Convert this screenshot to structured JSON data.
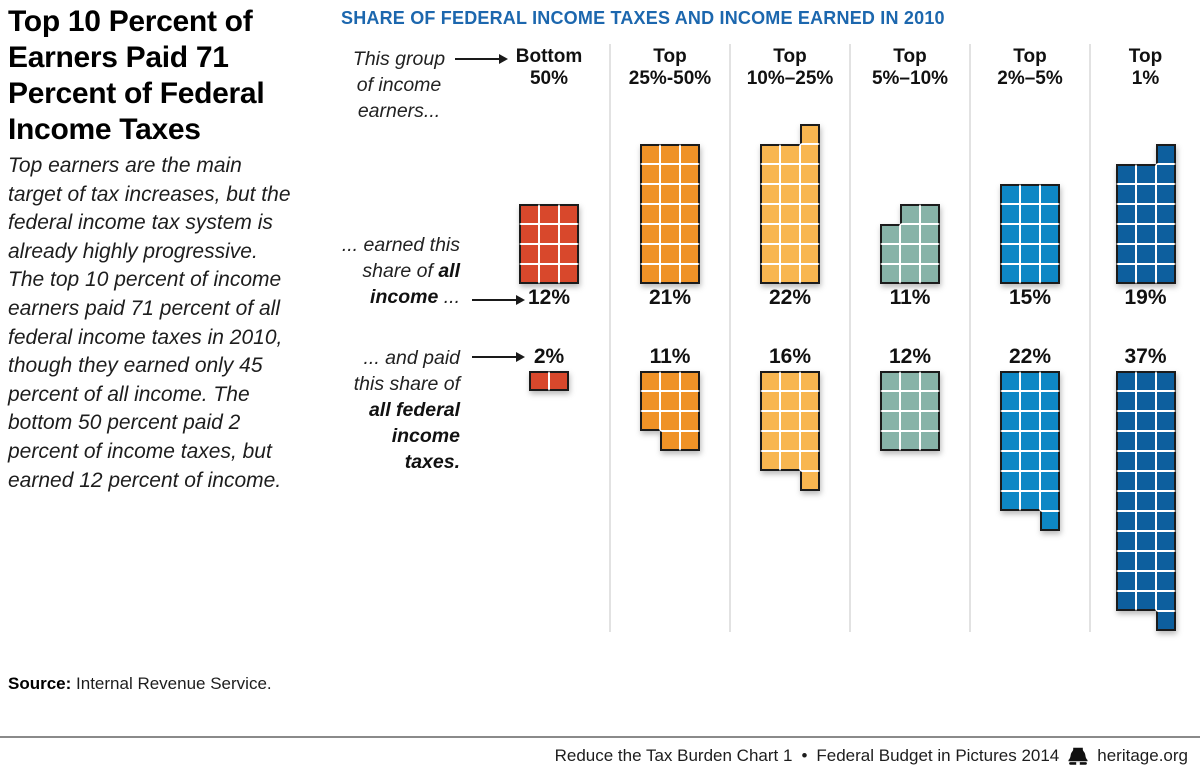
{
  "left_panel": {
    "title_lines": [
      "Top 10 Percent of",
      "Earners Paid 71",
      "Percent of Federal",
      "Income Taxes"
    ],
    "description_lines": [
      "Top earners are the main",
      "target of tax increases, but the",
      "federal income tax system is",
      "already highly progressive.",
      "The top 10 percent of income",
      "earners paid 71 percent of all",
      "federal income taxes in 2010,",
      "though they earned only 45",
      "percent of all income. The",
      "bottom 50 percent paid 2",
      "percent of income taxes, but",
      "earned 12 percent of income."
    ],
    "source_label": "Source:",
    "source_text": " Internal Revenue Service."
  },
  "chart_data": {
    "type": "waffle",
    "title": "SHARE OF FEDERAL INCOME TAXES AND INCOME EARNED IN 2010",
    "title_color": "#1c67ae",
    "square_unit_pct": 1,
    "categories": [
      "Bottom 50%",
      "Top 25%-50%",
      "Top 10%–25%",
      "Top 5%–10%",
      "Top 2%–5%",
      "Top 1%"
    ],
    "series": [
      {
        "name": "earned this share of all income",
        "values": [
          12,
          21,
          22,
          11,
          15,
          19
        ]
      },
      {
        "name": "paid this share of all federal income taxes",
        "values": [
          2,
          11,
          16,
          12,
          22,
          37
        ]
      }
    ],
    "pointer_labels": {
      "group": [
        "This group",
        "of income",
        "earners..."
      ],
      "income": {
        "line1": "... earned this",
        "line2_normal": "share of ",
        "line2_bold": "all",
        "line3_bold": "income",
        "line3_normal": " ..."
      },
      "tax": {
        "line1": "... and paid",
        "line2": "this share of",
        "line3_bold": "all federal",
        "line4_bold": "income",
        "line5_bold": "taxes."
      }
    },
    "groups": [
      {
        "header_line1": "Bottom",
        "header_line2": "50%",
        "color": "#d8482c",
        "income_pct": "12%",
        "tax_pct": "2%",
        "income_shape": [
          "111",
          "111",
          "111",
          "111"
        ],
        "tax_shape": [
          "110"
        ]
      },
      {
        "header_line1": "Top",
        "header_line2": "25%-50%",
        "color": "#ef9227",
        "income_pct": "21%",
        "tax_pct": "11%",
        "income_shape": [
          "111",
          "111",
          "111",
          "111",
          "111",
          "111",
          "111"
        ],
        "tax_shape": [
          "111",
          "111",
          "111",
          "011"
        ]
      },
      {
        "header_line1": "Top",
        "header_line2": "10%–25%",
        "color": "#f8b650",
        "income_pct": "22%",
        "tax_pct": "16%",
        "income_shape": [
          "001",
          "111",
          "111",
          "111",
          "111",
          "111",
          "111",
          "111"
        ],
        "tax_shape": [
          "111",
          "111",
          "111",
          "111",
          "111",
          "001"
        ]
      },
      {
        "header_line1": "Top",
        "header_line2": "5%–10%",
        "color": "#87b3a8",
        "income_pct": "11%",
        "tax_pct": "12%",
        "income_shape": [
          "011",
          "111",
          "111",
          "111"
        ],
        "tax_shape": [
          "111",
          "111",
          "111",
          "111"
        ]
      },
      {
        "header_line1": "Top",
        "header_line2": "2%–5%",
        "color": "#0e87c5",
        "income_pct": "15%",
        "tax_pct": "22%",
        "income_shape": [
          "111",
          "111",
          "111",
          "111",
          "111"
        ],
        "tax_shape": [
          "111",
          "111",
          "111",
          "111",
          "111",
          "111",
          "111",
          "001"
        ]
      },
      {
        "header_line1": "Top",
        "header_line2": "1%",
        "color": "#0d5f9e",
        "income_pct": "19%",
        "tax_pct": "37%",
        "income_shape": [
          "001",
          "111",
          "111",
          "111",
          "111",
          "111",
          "111"
        ],
        "tax_shape": [
          "111",
          "111",
          "111",
          "111",
          "111",
          "111",
          "111",
          "111",
          "111",
          "111",
          "111",
          "111",
          "001"
        ]
      }
    ]
  },
  "footer": {
    "chart_ref": "Reduce the Tax Burden Chart 1",
    "separator": "•",
    "series_name": "Federal Budget in Pictures 2014",
    "bell_icon": "liberty-bell-icon",
    "site": "heritage.org"
  }
}
